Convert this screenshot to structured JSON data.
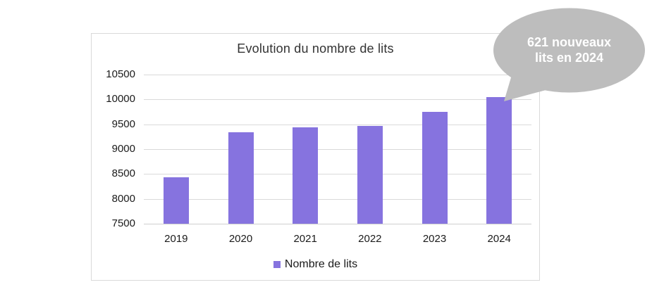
{
  "page": {
    "background": "#ffffff"
  },
  "chart_data": {
    "type": "bar",
    "title": "Evolution du nombre de lits",
    "categories": [
      "2019",
      "2020",
      "2021",
      "2022",
      "2023",
      "2024"
    ],
    "series": [
      {
        "name": "Nombre de lits",
        "values": [
          8430,
          9340,
          9445,
          9460,
          9745,
          10050
        ]
      }
    ],
    "xlabel": "",
    "ylabel": "",
    "ylim": [
      7500,
      10500
    ],
    "yticks": [
      7500,
      8000,
      8500,
      9000,
      9500,
      10000,
      10500
    ],
    "grid": true,
    "legend": {
      "label": "Nombre de lits",
      "position": "bottom"
    },
    "colors": {
      "bar": "#8673DF",
      "gridline": "#d9d9d9",
      "callout_bubble": "#BDBDBD",
      "callout_text": "#ffffff"
    },
    "annotation": {
      "text": "621 nouveaux lits en 2024",
      "line1": "621 nouveaux",
      "line2": "lits en 2024",
      "points_to": "2024"
    }
  }
}
